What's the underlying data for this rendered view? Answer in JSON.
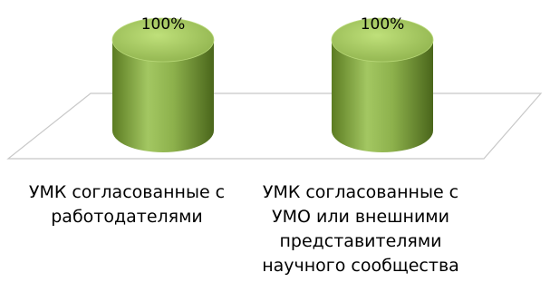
{
  "chart_data": {
    "type": "bar",
    "style": "3d-cylinder",
    "categories": [
      "УМК согласованные с работодателями",
      "УМК согласованные с УМО или внешними представителями научного сообщества"
    ],
    "values": [
      100,
      100
    ],
    "data_labels": [
      "100%",
      "100%"
    ],
    "title": "",
    "xlabel": "",
    "ylabel": "",
    "grid": false,
    "legend": "none",
    "colors": {
      "cylinder_top": "#a9cd63",
      "cylinder_body_light": "#9dc15c",
      "cylinder_body_dark": "#4f6b1e",
      "floor_edge": "#c8c8c8",
      "text": "#000000"
    }
  },
  "labels": {
    "category_0_text": "УМК согласованные с\nработодателями",
    "category_1_text": "УМК согласованные с\nУМО или внешними\nпредставителями\nнаучного сообщества"
  }
}
